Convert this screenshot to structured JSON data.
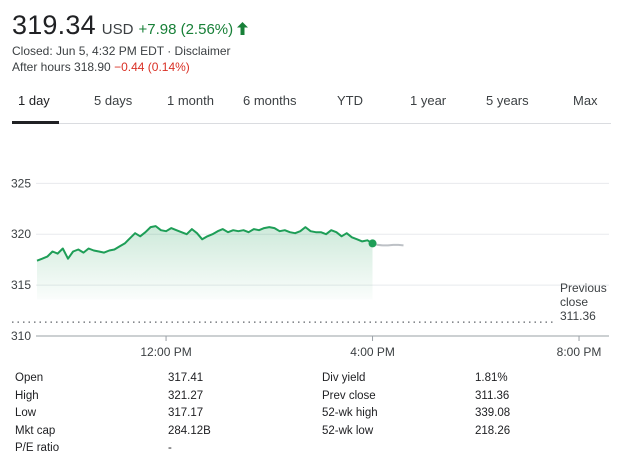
{
  "quote": {
    "price": "319.34",
    "currency": "USD",
    "change": "+7.98 (2.56%)",
    "closed_text": "Closed: Jun 5, 4:32 PM EDT",
    "separator": " · ",
    "disclaimer": "Disclaimer",
    "after_hours_label": "After hours 318.90",
    "after_hours_change": "−0.44 (0.14%)"
  },
  "tabs": [
    {
      "label": "1 day",
      "active": true
    },
    {
      "label": "5 days"
    },
    {
      "label": "1 month"
    },
    {
      "label": "6 months"
    },
    {
      "label": "YTD"
    },
    {
      "label": "1 year"
    },
    {
      "label": "5 years"
    },
    {
      "label": "Max"
    }
  ],
  "colors": {
    "up": "#188038",
    "down": "#d93025",
    "line": "#1e9e57",
    "after_hours_line": "#bdc1c6",
    "grid": "#e8eaed"
  },
  "chart_data": {
    "type": "line",
    "y_ticks": [
      "325",
      "320",
      "315",
      "310"
    ],
    "y_tick_values": [
      325,
      320,
      315,
      310
    ],
    "x_ticks": [
      "12:00 PM",
      "4:00 PM",
      "8:00 PM"
    ],
    "x_tick_values": [
      12,
      16,
      20
    ],
    "xlim": [
      9.5,
      20.6
    ],
    "ylim": [
      310,
      327
    ],
    "grid": true,
    "previous_close_label": "Previous close",
    "previous_close_value": "311.36",
    "previous_close": 311.36,
    "series": [
      {
        "x": [
          9.5,
          9.6,
          9.7,
          9.8,
          9.9,
          10.0,
          10.1,
          10.2,
          10.3,
          10.4,
          10.5,
          10.6,
          10.7,
          10.8,
          10.9,
          11.0,
          11.1,
          11.2,
          11.3,
          11.4,
          11.5,
          11.6,
          11.7,
          11.8,
          11.9,
          12.0,
          12.1,
          12.2,
          12.3,
          12.4,
          12.5,
          12.6,
          12.7,
          12.8,
          12.9,
          13.0,
          13.1,
          13.2,
          13.3,
          13.4,
          13.5,
          13.6,
          13.7,
          13.8,
          13.9,
          14.0,
          14.1,
          14.2,
          14.3,
          14.4,
          14.5,
          14.6,
          14.7,
          14.8,
          14.9,
          15.0,
          15.1,
          15.2,
          15.3,
          15.4,
          15.5,
          15.6,
          15.7,
          15.8,
          15.9,
          16.0
        ],
        "y": [
          317.4,
          317.6,
          317.8,
          318.3,
          318.1,
          318.6,
          317.6,
          318.3,
          318.5,
          318.2,
          318.6,
          318.4,
          318.3,
          318.2,
          318.4,
          318.5,
          318.8,
          319.1,
          319.6,
          320.1,
          319.8,
          320.2,
          320.7,
          320.8,
          320.4,
          320.3,
          320.6,
          320.4,
          320.2,
          320.0,
          320.5,
          320.1,
          319.5,
          319.8,
          320.0,
          320.3,
          320.5,
          320.2,
          320.4,
          320.3,
          320.4,
          320.2,
          320.5,
          320.4,
          320.6,
          320.7,
          320.6,
          320.3,
          320.4,
          320.2,
          320.1,
          320.3,
          320.7,
          320.3,
          320.2,
          320.2,
          320.0,
          320.4,
          320.2,
          319.8,
          320.1,
          319.7,
          319.5,
          319.3,
          319.4,
          319.1
        ]
      },
      {
        "x": [
          16.0,
          16.1,
          16.2,
          16.3,
          16.4,
          16.5,
          16.6
        ],
        "y": [
          319.1,
          318.95,
          318.9,
          318.9,
          318.95,
          318.95,
          318.9
        ]
      }
    ]
  },
  "stats": [
    {
      "label": "Open",
      "value": "317.41",
      "label2": "Div yield",
      "value2": "1.81%"
    },
    {
      "label": "High",
      "value": "321.27",
      "label2": "Prev close",
      "value2": "311.36"
    },
    {
      "label": "Low",
      "value": "317.17",
      "label2": "52-wk high",
      "value2": "339.08"
    },
    {
      "label": "Mkt cap",
      "value": "284.12B",
      "label2": "52-wk low",
      "value2": "218.26"
    },
    {
      "label": "P/E ratio",
      "value": "-",
      "label2": "",
      "value2": ""
    }
  ]
}
